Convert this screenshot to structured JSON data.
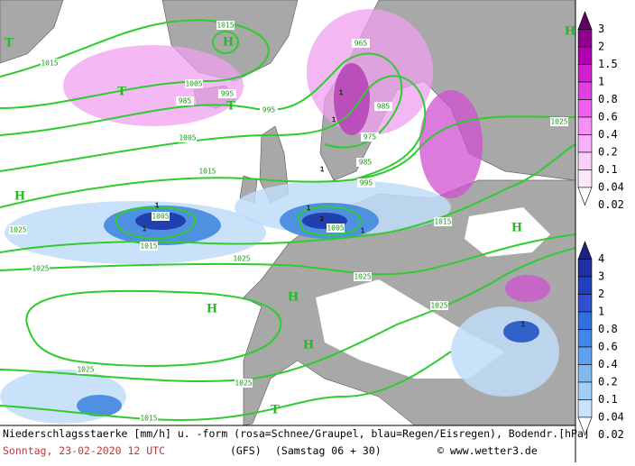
{
  "caption": {
    "description": "Niederschlagsstaerke [mm/h] u. -form (rosa=Schnee/Graupel, blau=Regen/Eisregen), Bodendr.[hPa]",
    "date": "Sonntag, 23-02-2020  12 UTC",
    "model": "(GFS)",
    "run": "(Samstag 06 + 30)",
    "credit": "© www.wetter3.de"
  },
  "snow_scale": [
    "3",
    "2",
    "1.5",
    "1",
    "0.8",
    "0.6",
    "0.4",
    "0.2",
    "0.1",
    "0.04",
    "0.02"
  ],
  "rain_scale": [
    "4",
    "3",
    "2",
    "1",
    "0.8",
    "0.6",
    "0.4",
    "0.2",
    "0.1",
    "0.04",
    "0.02"
  ],
  "isobar_labels": [
    "1015",
    "1015",
    "1005",
    "995",
    "995",
    "985",
    "965",
    "985",
    "975",
    "985",
    "995",
    "1005",
    "1015",
    "1025",
    "1025",
    "1015",
    "1005",
    "1005",
    "1025",
    "1015",
    "1025",
    "1025",
    "1025",
    "1025",
    "1015",
    "1025"
  ],
  "pressure_centers": [
    "H",
    "T",
    "T",
    "T",
    "H",
    "H",
    "H",
    "H",
    "H",
    "H",
    "T"
  ]
}
